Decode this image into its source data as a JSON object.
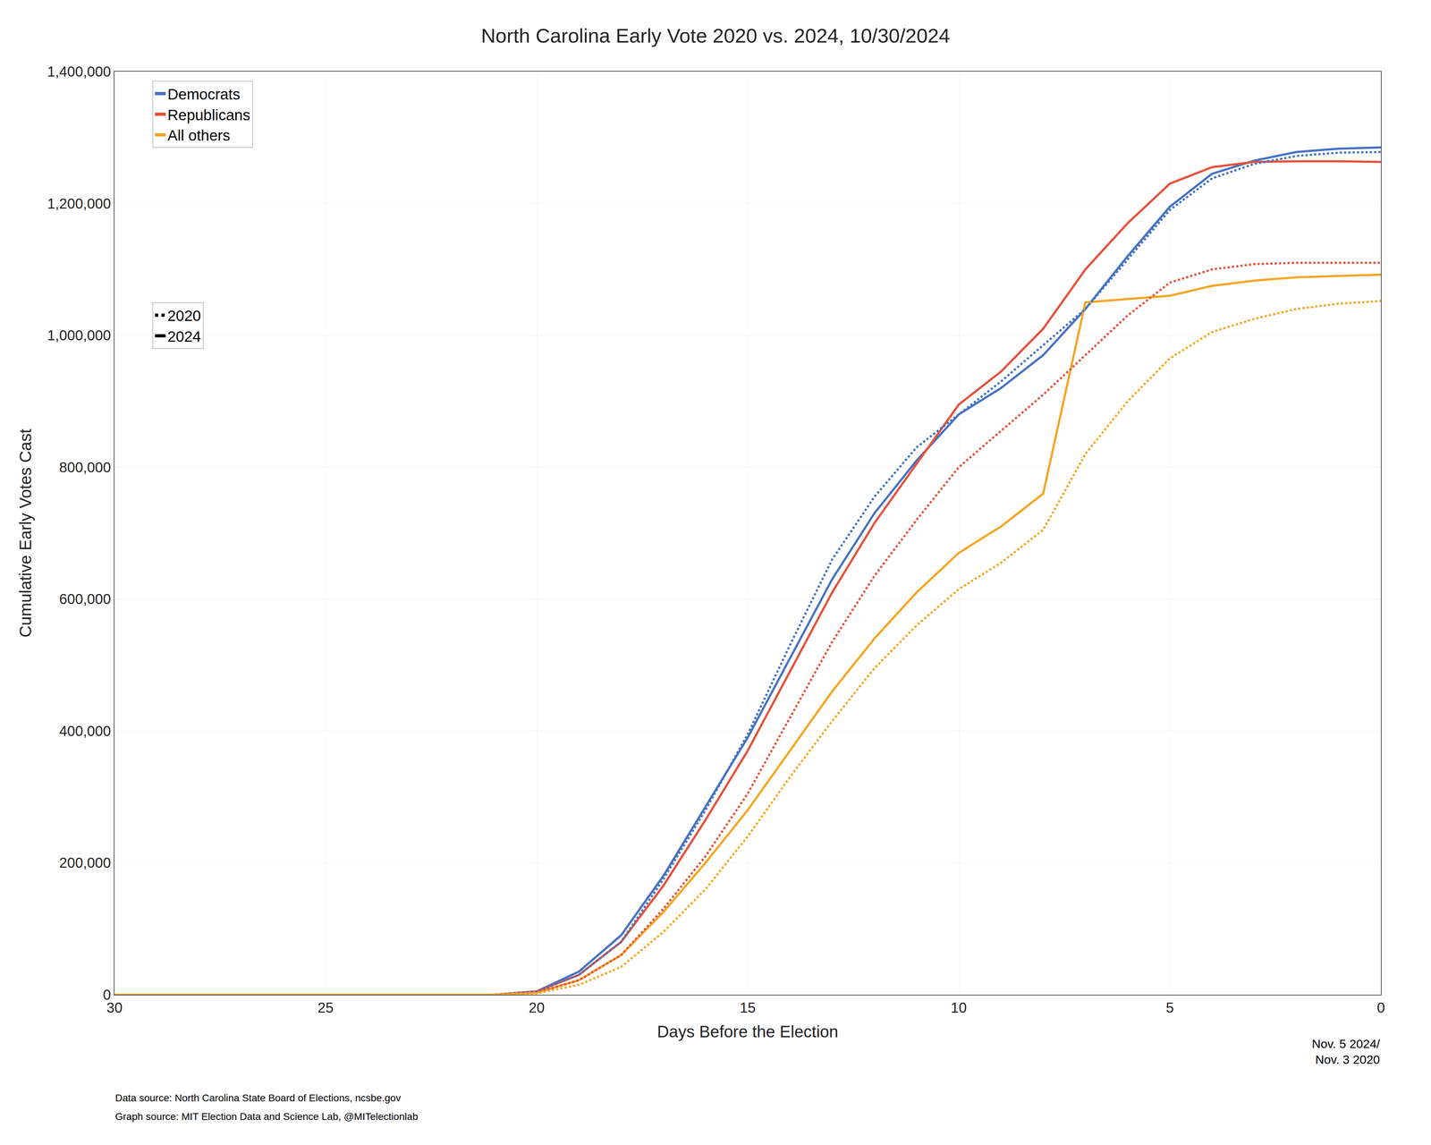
{
  "chart_data": {
    "type": "line",
    "title": "North Carolina Early Vote 2020 vs. 2024, 10/30/2024",
    "x_label": "Days Before the Election",
    "y_label": "Cumulative Early Votes Cast",
    "annotations": [
      "Nov. 5 2024/\nNov. 3 2020"
    ],
    "footnotes": [
      "Data source: North Carolina State Board of Elections, ncsbe.gov",
      "Graph source: MIT Election Data and Science Lab, @MITelectionlab"
    ],
    "x": [
      30,
      29,
      28,
      27,
      26,
      25,
      24,
      23,
      22,
      21,
      20,
      19,
      18,
      17,
      16,
      15,
      14,
      13,
      12,
      11,
      10,
      9,
      8,
      7,
      6,
      5,
      4,
      3,
      2,
      1,
      0
    ],
    "series": [
      {
        "name": "Democrats",
        "year": "2024",
        "color": "#4472C4",
        "line_style": "solid",
        "values": [
          0,
          0,
          0,
          0,
          0,
          0,
          0,
          0,
          0,
          0,
          5000,
          35000,
          90000,
          180000,
          285000,
          390000,
          510000,
          630000,
          730000,
          810000,
          880000,
          920000,
          970000,
          1040000,
          1120000,
          1195000,
          1245000,
          1265000,
          1278000,
          1283000,
          1285000
        ]
      },
      {
        "name": "Republicans",
        "year": "2024",
        "color": "#E8503A",
        "line_style": "solid",
        "values": [
          0,
          0,
          0,
          0,
          0,
          0,
          0,
          0,
          0,
          0,
          5000,
          30000,
          80000,
          165000,
          265000,
          370000,
          490000,
          610000,
          715000,
          805000,
          895000,
          945000,
          1010000,
          1100000,
          1170000,
          1230000,
          1255000,
          1263000,
          1264000,
          1264000,
          1263000
        ]
      },
      {
        "name": "All others",
        "year": "2024",
        "color": "#F5A623",
        "line_style": "solid",
        "values": [
          0,
          0,
          0,
          0,
          0,
          0,
          0,
          0,
          0,
          0,
          3000,
          22000,
          60000,
          125000,
          200000,
          280000,
          370000,
          460000,
          540000,
          610000,
          670000,
          710000,
          760000,
          1050000,
          1055000,
          1060000,
          1075000,
          1083000,
          1088000,
          1090000,
          1092000
        ]
      },
      {
        "name": "Democrats",
        "year": "2020",
        "color": "#4472C4",
        "line_style": "dotted",
        "values": [
          0,
          0,
          0,
          0,
          0,
          0,
          0,
          0,
          0,
          0,
          5000,
          30000,
          80000,
          175000,
          280000,
          395000,
          530000,
          660000,
          755000,
          830000,
          880000,
          930000,
          985000,
          1040000,
          1115000,
          1190000,
          1238000,
          1260000,
          1272000,
          1277000,
          1278000
        ]
      },
      {
        "name": "Republicans",
        "year": "2020",
        "color": "#E8503A",
        "line_style": "dotted",
        "values": [
          0,
          0,
          0,
          0,
          0,
          0,
          0,
          0,
          0,
          0,
          3000,
          22000,
          60000,
          130000,
          210000,
          305000,
          420000,
          535000,
          635000,
          720000,
          800000,
          855000,
          910000,
          970000,
          1030000,
          1080000,
          1100000,
          1108000,
          1110000,
          1110000,
          1110000
        ]
      },
      {
        "name": "All others",
        "year": "2020",
        "color": "#F5A623",
        "line_style": "dotted",
        "values": [
          0,
          0,
          0,
          0,
          0,
          0,
          0,
          0,
          0,
          0,
          2000,
          15000,
          42000,
          95000,
          160000,
          240000,
          330000,
          415000,
          495000,
          560000,
          615000,
          655000,
          705000,
          820000,
          900000,
          965000,
          1005000,
          1025000,
          1040000,
          1048000,
          1052000
        ]
      }
    ],
    "xlim": [
      30,
      0
    ],
    "ylim": [
      0,
      1400000
    ],
    "xticks": [
      30,
      25,
      20,
      15,
      10,
      5,
      0
    ],
    "yticks": [
      0,
      {
        "value": 200000,
        "label": "200,000"
      },
      {
        "value": 400000,
        "label": "400,000"
      },
      {
        "value": 600000,
        "label": "600,000"
      },
      {
        "value": 800000,
        "label": "800,000"
      },
      {
        "value": 1000000,
        "label": "1,000,000"
      },
      {
        "value": 1200000,
        "label": "1,200,000"
      },
      {
        "value": 1400000,
        "label": "1,400,000"
      }
    ],
    "grid": true,
    "legend": "upper left"
  }
}
